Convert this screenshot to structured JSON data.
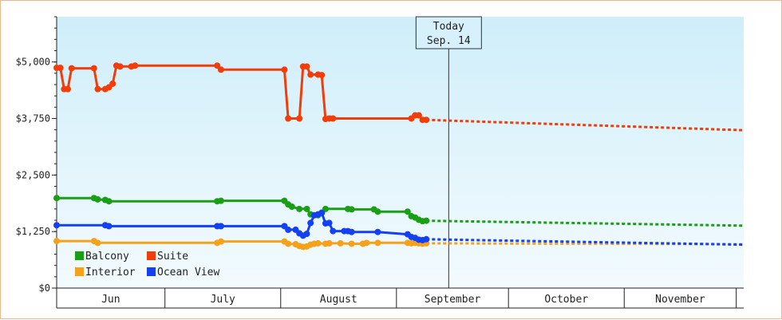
{
  "chart_data": {
    "type": "line",
    "title": "",
    "xlabel": "",
    "ylabel": "",
    "ylim": [
      0,
      6000
    ],
    "y_ticks": [
      {
        "value": 0,
        "label": "$0"
      },
      {
        "value": 1250,
        "label": "$1,250"
      },
      {
        "value": 2500,
        "label": "$2,500"
      },
      {
        "value": 3750,
        "label": "$3,750"
      },
      {
        "value": 5000,
        "label": "$5,000"
      }
    ],
    "x_range": [
      "2024-06-01",
      "2024-12-02"
    ],
    "months": [
      {
        "label": "Jun",
        "start": "2024-06-01",
        "end": "2024-06-30"
      },
      {
        "label": "July",
        "start": "2024-06-30",
        "end": "2024-07-31"
      },
      {
        "label": "August",
        "start": "2024-07-31",
        "end": "2024-08-31"
      },
      {
        "label": "September",
        "start": "2024-08-31",
        "end": "2024-09-30"
      },
      {
        "label": "October",
        "start": "2024-09-30",
        "end": "2024-10-31"
      },
      {
        "label": "November",
        "start": "2024-10-31",
        "end": "2024-11-30"
      }
    ],
    "today": {
      "line1": "Today",
      "line2": "Sep. 14",
      "date": "2024-09-14"
    },
    "grid": false,
    "legend_position": "bottom-left",
    "series": [
      {
        "name": "Balcony",
        "color": "#1a9e16",
        "points": [
          [
            "2024-06-01",
            1990
          ],
          [
            "2024-06-11",
            1990
          ],
          [
            "2024-06-12",
            1960
          ],
          [
            "2024-06-14",
            1950
          ],
          [
            "2024-06-15",
            1920
          ],
          [
            "2024-07-14",
            1920
          ],
          [
            "2024-07-15",
            1930
          ],
          [
            "2024-08-01",
            1930
          ],
          [
            "2024-08-02",
            1850
          ],
          [
            "2024-08-03",
            1800
          ],
          [
            "2024-08-05",
            1750
          ],
          [
            "2024-08-07",
            1750
          ],
          [
            "2024-08-08",
            1630
          ],
          [
            "2024-08-10",
            1610
          ],
          [
            "2024-08-11",
            1670
          ],
          [
            "2024-08-12",
            1750
          ],
          [
            "2024-08-18",
            1750
          ],
          [
            "2024-08-19",
            1740
          ],
          [
            "2024-08-25",
            1740
          ],
          [
            "2024-08-26",
            1690
          ],
          [
            "2024-09-03",
            1690
          ],
          [
            "2024-09-04",
            1590
          ],
          [
            "2024-09-05",
            1560
          ],
          [
            "2024-09-06",
            1510
          ],
          [
            "2024-09-07",
            1480
          ],
          [
            "2024-09-08",
            1490
          ]
        ],
        "forecast": [
          [
            "2024-09-08",
            1490
          ],
          [
            "2024-12-02",
            1380
          ]
        ]
      },
      {
        "name": "Suite",
        "color": "#f23d0a",
        "points": [
          [
            "2024-06-01",
            4870
          ],
          [
            "2024-06-02",
            4870
          ],
          [
            "2024-06-03",
            4400
          ],
          [
            "2024-06-04",
            4400
          ],
          [
            "2024-06-05",
            4860
          ],
          [
            "2024-06-11",
            4860
          ],
          [
            "2024-06-12",
            4400
          ],
          [
            "2024-06-14",
            4400
          ],
          [
            "2024-06-15",
            4440
          ],
          [
            "2024-06-16",
            4520
          ],
          [
            "2024-06-17",
            4920
          ],
          [
            "2024-06-18",
            4900
          ],
          [
            "2024-06-21",
            4900
          ],
          [
            "2024-06-22",
            4920
          ],
          [
            "2024-07-14",
            4920
          ],
          [
            "2024-07-15",
            4830
          ],
          [
            "2024-08-01",
            4830
          ],
          [
            "2024-08-02",
            3750
          ],
          [
            "2024-08-05",
            3750
          ],
          [
            "2024-08-06",
            4900
          ],
          [
            "2024-08-07",
            4900
          ],
          [
            "2024-08-08",
            4720
          ],
          [
            "2024-08-10",
            4720
          ],
          [
            "2024-08-11",
            4710
          ],
          [
            "2024-08-12",
            3740
          ],
          [
            "2024-08-13",
            3750
          ],
          [
            "2024-08-14",
            3750
          ],
          [
            "2024-09-04",
            3750
          ],
          [
            "2024-09-05",
            3820
          ],
          [
            "2024-09-06",
            3820
          ],
          [
            "2024-09-07",
            3720
          ],
          [
            "2024-09-08",
            3720
          ]
        ],
        "forecast": [
          [
            "2024-09-08",
            3720
          ],
          [
            "2024-12-02",
            3490
          ]
        ]
      },
      {
        "name": "Interior",
        "color": "#f5a21a",
        "points": [
          [
            "2024-06-01",
            1040
          ],
          [
            "2024-06-11",
            1040
          ],
          [
            "2024-06-12",
            1000
          ],
          [
            "2024-07-14",
            1000
          ],
          [
            "2024-07-15",
            1030
          ],
          [
            "2024-08-01",
            1030
          ],
          [
            "2024-08-02",
            980
          ],
          [
            "2024-08-04",
            970
          ],
          [
            "2024-08-05",
            930
          ],
          [
            "2024-08-06",
            910
          ],
          [
            "2024-08-07",
            920
          ],
          [
            "2024-08-08",
            960
          ],
          [
            "2024-08-09",
            980
          ],
          [
            "2024-08-10",
            990
          ],
          [
            "2024-08-12",
            980
          ],
          [
            "2024-08-13",
            990
          ],
          [
            "2024-08-16",
            990
          ],
          [
            "2024-08-19",
            980
          ],
          [
            "2024-08-22",
            980
          ],
          [
            "2024-08-23",
            1000
          ],
          [
            "2024-08-26",
            1000
          ],
          [
            "2024-09-03",
            1000
          ],
          [
            "2024-09-04",
            990
          ],
          [
            "2024-09-05",
            1000
          ],
          [
            "2024-09-06",
            990
          ],
          [
            "2024-09-07",
            980
          ],
          [
            "2024-09-08",
            990
          ]
        ],
        "forecast": [
          [
            "2024-09-08",
            990
          ],
          [
            "2024-12-02",
            970
          ]
        ]
      },
      {
        "name": "Ocean View",
        "color": "#1240f2",
        "points": [
          [
            "2024-06-01",
            1390
          ],
          [
            "2024-06-14",
            1390
          ],
          [
            "2024-06-15",
            1370
          ],
          [
            "2024-07-14",
            1370
          ],
          [
            "2024-07-15",
            1370
          ],
          [
            "2024-08-01",
            1370
          ],
          [
            "2024-08-02",
            1290
          ],
          [
            "2024-08-04",
            1290
          ],
          [
            "2024-08-05",
            1210
          ],
          [
            "2024-08-06",
            1160
          ],
          [
            "2024-08-07",
            1200
          ],
          [
            "2024-08-08",
            1440
          ],
          [
            "2024-08-09",
            1610
          ],
          [
            "2024-08-10",
            1630
          ],
          [
            "2024-08-11",
            1660
          ],
          [
            "2024-08-12",
            1430
          ],
          [
            "2024-08-13",
            1440
          ],
          [
            "2024-08-14",
            1260
          ],
          [
            "2024-08-17",
            1260
          ],
          [
            "2024-08-18",
            1260
          ],
          [
            "2024-08-19",
            1240
          ],
          [
            "2024-08-26",
            1240
          ],
          [
            "2024-09-03",
            1190
          ],
          [
            "2024-09-04",
            1130
          ],
          [
            "2024-09-05",
            1110
          ],
          [
            "2024-09-06",
            1070
          ],
          [
            "2024-09-07",
            1060
          ],
          [
            "2024-09-08",
            1080
          ]
        ],
        "forecast": [
          [
            "2024-09-08",
            1080
          ],
          [
            "2024-12-02",
            960
          ]
        ]
      }
    ]
  }
}
